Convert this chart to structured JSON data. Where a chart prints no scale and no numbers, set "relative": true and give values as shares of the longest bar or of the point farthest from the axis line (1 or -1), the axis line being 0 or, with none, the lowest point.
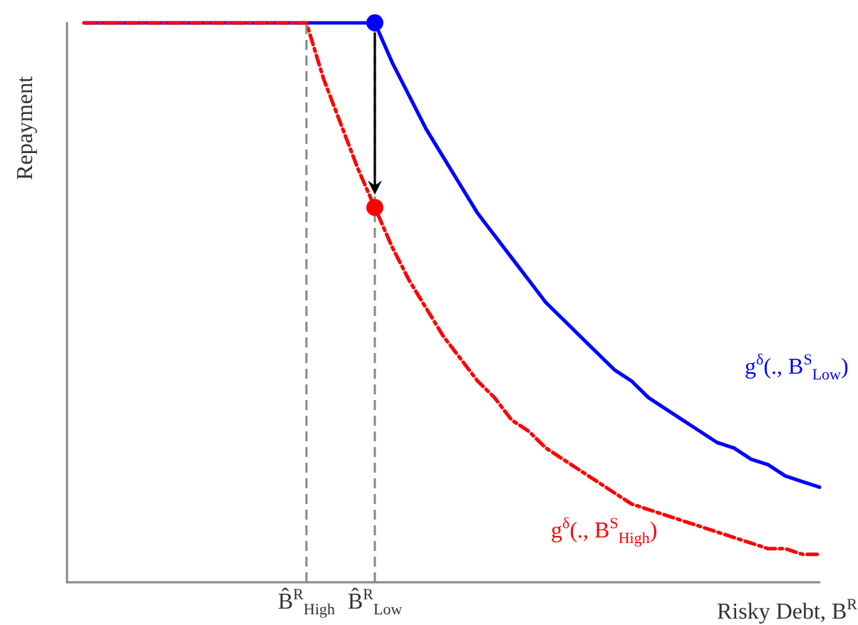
{
  "chart_data": {
    "type": "line",
    "relative": true,
    "xlabel": "Risky Debt, B$^{R}$",
    "ylabel": "Repayment",
    "categories": [
      null,
      null,
      null,
      null,
      null,
      null,
      null,
      null,
      null,
      null,
      null,
      null,
      null,
      null,
      "B̂$^{R}$$_{High}$",
      null,
      null,
      null,
      "B̂$^{R}$$_{Low}$",
      null,
      null,
      null,
      null,
      null,
      null,
      null,
      null,
      null,
      null,
      null,
      null,
      null,
      null,
      null,
      null,
      null,
      null,
      null,
      null,
      null,
      null,
      null,
      null,
      null,
      null
    ],
    "series": [
      {
        "name": "g$^{δ}$(., B$^{S}$$_{Low}$)",
        "color": "#0000ff",
        "line_style": "solid",
        "values": [
          null,
          1,
          1,
          1,
          1,
          1,
          1,
          1,
          1,
          1,
          1,
          1,
          1,
          1,
          1,
          1,
          1,
          1,
          1,
          0.93,
          0.87,
          0.81,
          0.76,
          0.71,
          0.66,
          0.62,
          0.58,
          0.54,
          0.5,
          0.47,
          0.44,
          0.41,
          0.38,
          0.36,
          0.33,
          0.31,
          0.29,
          0.27,
          0.25,
          0.24,
          0.22,
          0.21,
          0.19,
          0.18,
          0.17
        ]
      },
      {
        "name": "g$^{δ}$(., B$^{S}$$_{High}$)",
        "color": "#ff0000",
        "line_style": "dashed",
        "values": [
          null,
          1,
          1,
          1,
          1,
          1,
          1,
          1,
          1,
          1,
          1,
          1,
          1,
          1,
          1,
          0.9,
          0.82,
          0.74,
          0.67,
          0.6,
          0.54,
          0.49,
          0.44,
          0.4,
          0.36,
          0.33,
          0.29,
          0.27,
          0.24,
          0.22,
          0.2,
          0.18,
          0.16,
          0.14,
          0.13,
          0.12,
          0.11,
          0.1,
          0.09,
          0.08,
          0.07,
          0.06,
          0.06,
          0.05,
          0.05
        ]
      },
      {
        "type": "scatter",
        "marker": "circle",
        "color": "#0000ff",
        "x": [
          "B̂$^{R}$$_{Low}$"
        ],
        "values": [
          1
        ]
      },
      {
        "type": "scatter",
        "marker": "circle",
        "color": "#ff0000",
        "x": [
          "B̂$^{R}$$_{Low}$"
        ],
        "values": [
          0.67
        ]
      }
    ],
    "ref_lines": [
      {
        "axis": "x",
        "value": "B̂$^{R}$$_{High}$",
        "color": "#888888",
        "line_style": "dashed"
      },
      {
        "axis": "x",
        "value": "B̂$^{R}$$_{Low}$",
        "color": "#888888",
        "line_style": "dashed"
      }
    ]
  }
}
